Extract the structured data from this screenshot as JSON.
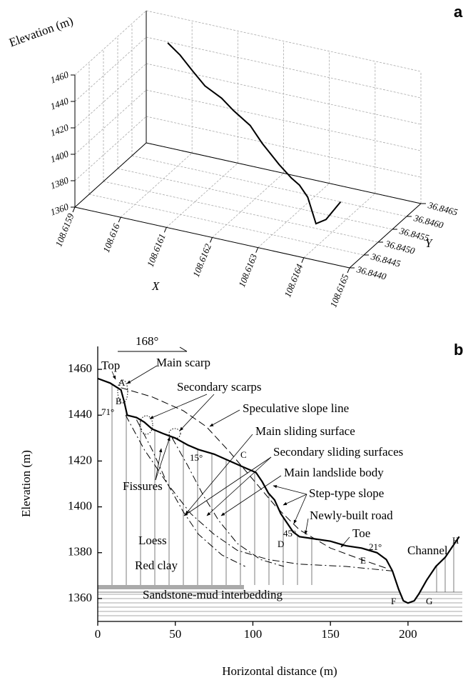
{
  "chart_data": [
    {
      "type": "line3d",
      "panel_label": "a",
      "zlabel": "Elevation (m)",
      "xlabel": "X",
      "ylabel": "Y",
      "color": "#000000",
      "grid": true,
      "x": [
        108.61599,
        108.61602,
        108.61605,
        108.61608,
        108.61612,
        108.61615,
        108.61619,
        108.61622,
        108.61626,
        108.61629,
        108.61631,
        108.61633,
        108.61635,
        108.61638,
        108.61642
      ],
      "y": [
        36.84581,
        36.84576,
        36.84572,
        36.84567,
        36.84561,
        36.84555,
        36.84549,
        36.84543,
        36.84538,
        36.84533,
        36.84529,
        36.84526,
        36.84523,
        36.8451,
        36.84497
      ],
      "z": [
        1456,
        1450,
        1441,
        1433,
        1428,
        1422,
        1415,
        1405,
        1393,
        1386,
        1383,
        1376,
        1358,
        1366,
        1385
      ],
      "xlim": [
        108.6159,
        108.6165
      ],
      "ylim": [
        36.844,
        36.8465
      ],
      "zlim": [
        1360,
        1460
      ],
      "xticks": [
        108.6159,
        108.616,
        108.6161,
        108.6162,
        108.6163,
        108.6164,
        108.6165
      ],
      "yticks": [
        {
          "value": 36.844,
          "label": "36.8440"
        },
        {
          "value": 36.8445,
          "label": "36.8445"
        },
        {
          "value": 36.845,
          "label": "36.8450"
        },
        {
          "value": 36.8455,
          "label": "36.8455"
        },
        {
          "value": 36.846,
          "label": "36.8460"
        },
        {
          "value": 36.8465,
          "label": "36.8465"
        }
      ],
      "zticks": [
        1360,
        1380,
        1400,
        1420,
        1440,
        1460
      ]
    },
    {
      "type": "profile",
      "panel_label": "b",
      "xlabel": "Horizontal distance (m)",
      "ylabel": "Elevation (m)",
      "xlim": [
        0,
        235
      ],
      "ylim": [
        1350,
        1470
      ],
      "xticks": [
        0,
        50,
        100,
        150,
        200
      ],
      "yticks": [
        1360,
        1380,
        1400,
        1420,
        1440,
        1460
      ],
      "series": [
        {
          "color": "#000000",
          "dash": "solid",
          "x": [
            0,
            8,
            15,
            17,
            19,
            25,
            30,
            35,
            42,
            50,
            58,
            65,
            75,
            85,
            95,
            102,
            106,
            110,
            114,
            118,
            122,
            126,
            130,
            140,
            150,
            160,
            170,
            180,
            186,
            190,
            194,
            197,
            200,
            204,
            207,
            212,
            218,
            224,
            228,
            233
          ],
          "values": [
            1456,
            1454,
            1451,
            1446,
            1440,
            1439,
            1437,
            1434,
            1432,
            1430,
            1427,
            1425,
            1423,
            1420,
            1417,
            1415,
            1411,
            1406,
            1403,
            1397,
            1393,
            1389,
            1387,
            1386,
            1385,
            1383,
            1382,
            1380,
            1377,
            1372,
            1364,
            1359,
            1358,
            1359,
            1362,
            1368,
            1374,
            1378,
            1382,
            1387
          ]
        },
        {
          "color": "#000000",
          "dash": "dashed",
          "x": [
            15,
            35,
            55,
            70,
            85,
            100,
            115,
            130,
            150,
            170,
            187
          ],
          "values": [
            1452,
            1448,
            1442,
            1435,
            1424,
            1412,
            1400,
            1390,
            1382,
            1377,
            1373
          ]
        },
        {
          "color": "#000000",
          "dash": "dashdot",
          "x": [
            18,
            30,
            45,
            60,
            75,
            90,
            110,
            130,
            160,
            190
          ],
          "values": [
            1440,
            1425,
            1410,
            1397,
            1388,
            1381,
            1377,
            1375,
            1374,
            1372
          ]
        },
        {
          "color": "#000000",
          "dash": "dashdot",
          "x": [
            25,
            35,
            45,
            55,
            65,
            80,
            95
          ],
          "values": [
            1438,
            1425,
            1410,
            1398,
            1388,
            1379,
            1374
          ]
        },
        {
          "color": "#000000",
          "dash": "dashdot",
          "x": [
            48,
            58,
            68,
            78,
            90,
            105,
            120
          ],
          "values": [
            1430,
            1418,
            1405,
            1394,
            1384,
            1377,
            1374
          ]
        }
      ],
      "annotations": [
        "Top",
        "Main scarp",
        "A",
        "B",
        "71°",
        "Secondary scarps",
        "Speculative slope line",
        "Main sliding surface",
        "Secondary sliding surfaces",
        "Main landslide body",
        "C",
        "15°",
        "Fissures",
        "Step-type slope",
        "45°",
        "Newly-built road",
        "Loess",
        "D",
        "Toe",
        "21°",
        "Red clay",
        "Channel",
        "E",
        "H",
        "Sandstone-mud interbedding",
        "F",
        "G",
        "168°"
      ]
    }
  ]
}
